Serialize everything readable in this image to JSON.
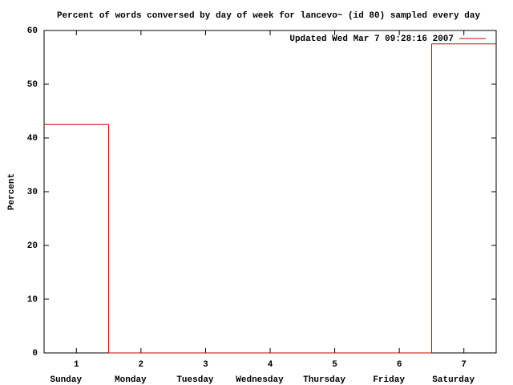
{
  "chart_data": {
    "type": "step",
    "title": "Percent of words conversed by day of week for lancevo~ (id 80) sampled every day",
    "y_label": "Percent",
    "x": [
      1,
      2,
      3,
      4,
      5,
      6,
      7
    ],
    "categories": [
      "Sunday",
      "Monday",
      "Tuesday",
      "Wednesday",
      "Thursday",
      "Friday",
      "Saturday"
    ],
    "series": [
      {
        "name": "Updated Wed Mar  7 09:28:16 2007",
        "color": "#cc0000",
        "values": [
          42.5,
          0,
          0,
          0,
          0,
          0,
          57.5
        ]
      }
    ],
    "xlim": [
      0.5,
      7.5
    ],
    "xticks": [
      1,
      2,
      3,
      4,
      5,
      6,
      7
    ],
    "ylim": [
      0,
      60
    ],
    "yticks": [
      0,
      10,
      20,
      30,
      40,
      50,
      60
    ],
    "legend": "top-right",
    "grid": false
  }
}
